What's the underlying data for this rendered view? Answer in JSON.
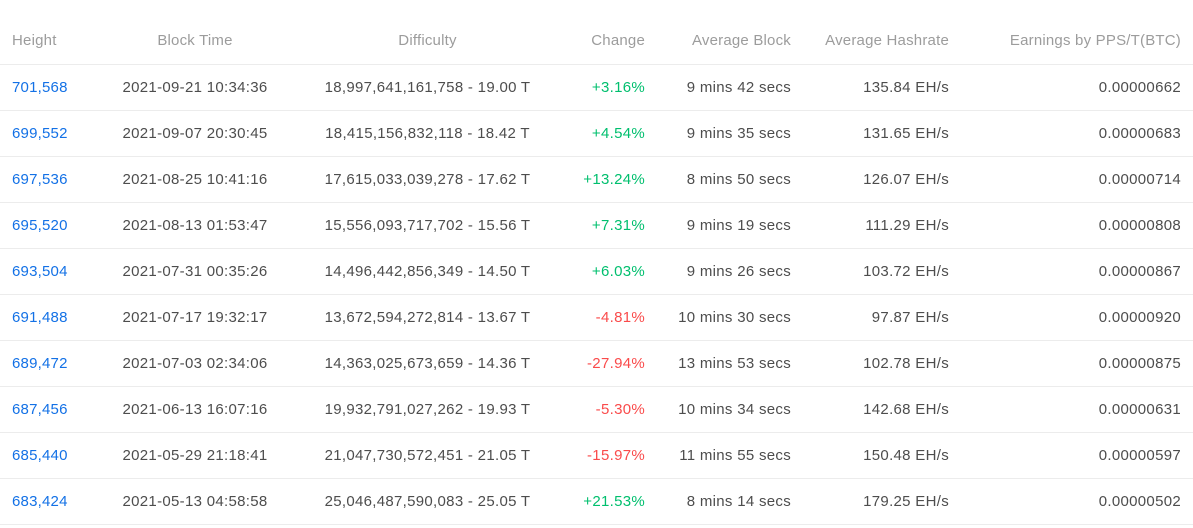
{
  "colors": {
    "link": "#1371e6",
    "positive": "#00bf6e",
    "negative": "#fa4b4b",
    "header_text": "#9c9c9c",
    "body_text": "#4d4d4d",
    "divider": "#ececec"
  },
  "table": {
    "columns": [
      {
        "key": "height",
        "label": "Height"
      },
      {
        "key": "block_time",
        "label": "Block Time"
      },
      {
        "key": "difficulty",
        "label": "Difficulty"
      },
      {
        "key": "change",
        "label": "Change"
      },
      {
        "key": "avg_block",
        "label": "Average Block"
      },
      {
        "key": "avg_hashrate",
        "label": "Average Hashrate"
      },
      {
        "key": "earnings",
        "label": "Earnings by PPS/T(BTC)"
      }
    ],
    "rows": [
      {
        "height": "701,568",
        "block_time": "2021-09-21 10:34:36",
        "difficulty": "18,997,641,161,758 - 19.00 T",
        "change": "+3.16%",
        "change_direction": "up",
        "avg_block": "9 mins 42 secs",
        "avg_hashrate": "135.84 EH/s",
        "earnings": "0.00000662"
      },
      {
        "height": "699,552",
        "block_time": "2021-09-07 20:30:45",
        "difficulty": "18,415,156,832,118 - 18.42 T",
        "change": "+4.54%",
        "change_direction": "up",
        "avg_block": "9 mins 35 secs",
        "avg_hashrate": "131.65 EH/s",
        "earnings": "0.00000683"
      },
      {
        "height": "697,536",
        "block_time": "2021-08-25 10:41:16",
        "difficulty": "17,615,033,039,278 - 17.62 T",
        "change": "+13.24%",
        "change_direction": "up",
        "avg_block": "8 mins 50 secs",
        "avg_hashrate": "126.07 EH/s",
        "earnings": "0.00000714"
      },
      {
        "height": "695,520",
        "block_time": "2021-08-13 01:53:47",
        "difficulty": "15,556,093,717,702 - 15.56 T",
        "change": "+7.31%",
        "change_direction": "up",
        "avg_block": "9 mins 19 secs",
        "avg_hashrate": "111.29 EH/s",
        "earnings": "0.00000808"
      },
      {
        "height": "693,504",
        "block_time": "2021-07-31 00:35:26",
        "difficulty": "14,496,442,856,349 - 14.50 T",
        "change": "+6.03%",
        "change_direction": "up",
        "avg_block": "9 mins 26 secs",
        "avg_hashrate": "103.72 EH/s",
        "earnings": "0.00000867"
      },
      {
        "height": "691,488",
        "block_time": "2021-07-17 19:32:17",
        "difficulty": "13,672,594,272,814 - 13.67 T",
        "change": "-4.81%",
        "change_direction": "down",
        "avg_block": "10 mins 30 secs",
        "avg_hashrate": "97.87 EH/s",
        "earnings": "0.00000920"
      },
      {
        "height": "689,472",
        "block_time": "2021-07-03 02:34:06",
        "difficulty": "14,363,025,673,659 - 14.36 T",
        "change": "-27.94%",
        "change_direction": "down",
        "avg_block": "13 mins 53 secs",
        "avg_hashrate": "102.78 EH/s",
        "earnings": "0.00000875"
      },
      {
        "height": "687,456",
        "block_time": "2021-06-13 16:07:16",
        "difficulty": "19,932,791,027,262 - 19.93 T",
        "change": "-5.30%",
        "change_direction": "down",
        "avg_block": "10 mins 34 secs",
        "avg_hashrate": "142.68 EH/s",
        "earnings": "0.00000631"
      },
      {
        "height": "685,440",
        "block_time": "2021-05-29 21:18:41",
        "difficulty": "21,047,730,572,451 - 21.05 T",
        "change": "-15.97%",
        "change_direction": "down",
        "avg_block": "11 mins 55 secs",
        "avg_hashrate": "150.48 EH/s",
        "earnings": "0.00000597"
      },
      {
        "height": "683,424",
        "block_time": "2021-05-13 04:58:58",
        "difficulty": "25,046,487,590,083 - 25.05 T",
        "change": "+21.53%",
        "change_direction": "up",
        "avg_block": "8 mins 14 secs",
        "avg_hashrate": "179.25 EH/s",
        "earnings": "0.00000502"
      }
    ]
  }
}
